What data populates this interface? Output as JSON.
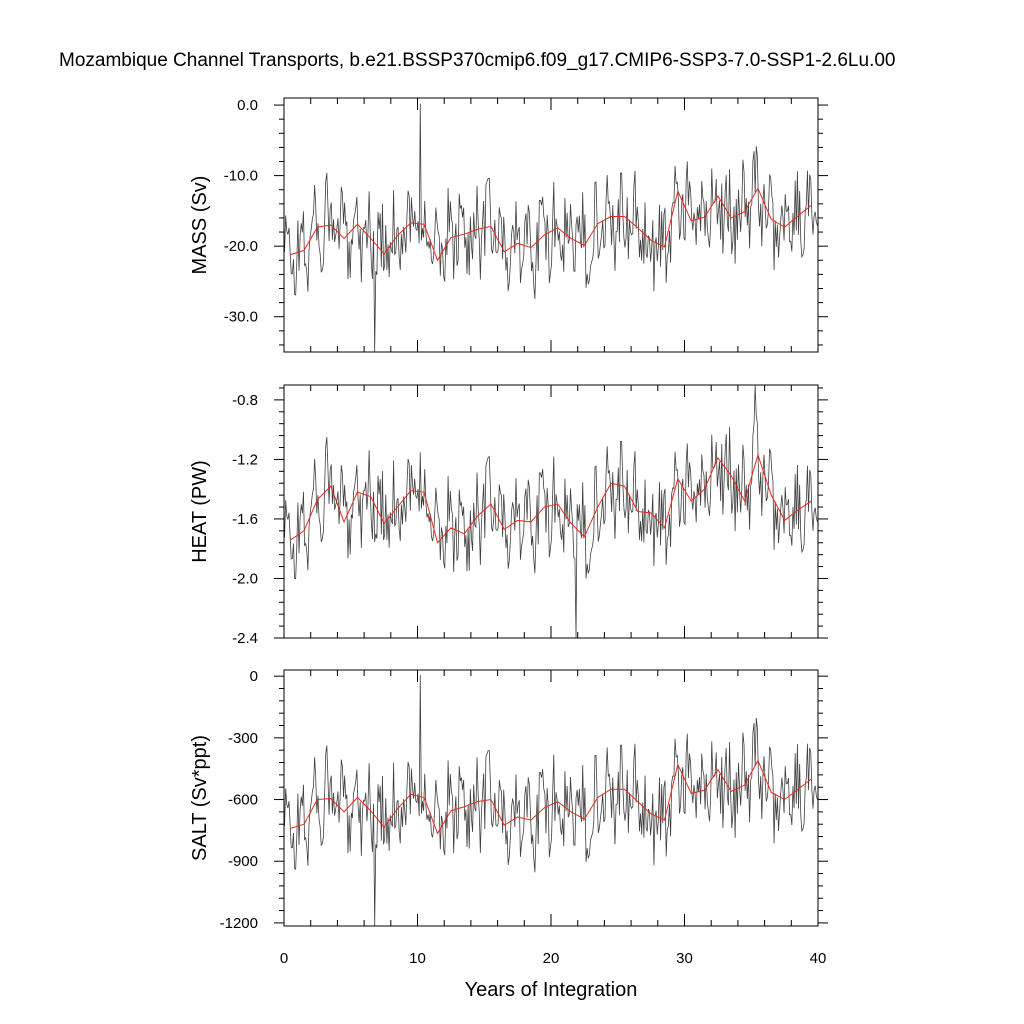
{
  "chart_data": {
    "type": "line",
    "title": "Mozambique Channel Transports, b.e21.BSSP370cmip6.f09_g17.CMIP6-SSP3-7.0-SSP1-2.6Lu.00",
    "xlabel": "Years of Integration",
    "xlim": [
      0,
      40
    ],
    "x_ticks": [
      "0",
      "10",
      "20",
      "30",
      "40"
    ],
    "series_colors": {
      "monthly": "#404040",
      "annual": "#e8281e"
    },
    "panels": [
      {
        "name": "mass",
        "ylabel": "MASS (Sv)",
        "ylim": [
          -35,
          1
        ],
        "y_ticks": [
          {
            "value": 0,
            "label": "0.0"
          },
          {
            "value": -10,
            "label": "-10.0"
          },
          {
            "value": -20,
            "label": "-20.0"
          },
          {
            "value": -30,
            "label": "-30.0"
          }
        ],
        "noise_amp": 4.6,
        "spike_up": {
          "x": 10.2,
          "value": 0.2
        },
        "spike_down": {
          "x": 6.8,
          "value": -35.0
        },
        "annual_x": [
          0.5,
          1.5,
          2.5,
          3.5,
          4.5,
          5.5,
          6.5,
          7.5,
          8.5,
          9.5,
          10.5,
          11.5,
          12.5,
          13.5,
          14.5,
          15.5,
          16.5,
          17.5,
          18.5,
          19.5,
          20.5,
          21.5,
          22.5,
          23.5,
          24.5,
          25.5,
          26.5,
          27.5,
          28.5,
          29.5,
          30.5,
          31.5,
          32.5,
          33.5,
          34.5,
          35.5,
          36.5,
          37.5,
          38.5,
          39.5
        ],
        "annual_values": [
          -21.2,
          -20.6,
          -17.3,
          -17.0,
          -18.9,
          -16.9,
          -18.9,
          -21.1,
          -18.5,
          -16.7,
          -16.9,
          -22.0,
          -18.8,
          -18.3,
          -17.6,
          -17.2,
          -20.8,
          -19.6,
          -20.2,
          -18.4,
          -17.4,
          -18.9,
          -19.9,
          -16.8,
          -15.8,
          -15.8,
          -17.4,
          -19.2,
          -20.1,
          -12.2,
          -16.4,
          -15.9,
          -12.9,
          -16.0,
          -15.1,
          -11.8,
          -16.2,
          -17.3,
          -15.7,
          -14.2
        ]
      },
      {
        "name": "heat",
        "ylabel": "HEAT (PW)",
        "ylim": [
          -2.4,
          -0.7
        ],
        "y_ticks": [
          {
            "value": -0.8,
            "label": "-0.8"
          },
          {
            "value": -1.2,
            "label": "-1.2"
          },
          {
            "value": -1.6,
            "label": "-1.6"
          },
          {
            "value": -2.0,
            "label": "-2.0"
          },
          {
            "value": -2.4,
            "label": "-2.4"
          }
        ],
        "noise_amp": 0.22,
        "spike_up": {
          "x": 35.3,
          "value": -0.68
        },
        "spike_down": {
          "x": 21.9,
          "value": -2.4
        },
        "annual_x": [
          0.5,
          1.5,
          2.5,
          3.5,
          4.5,
          5.5,
          6.5,
          7.5,
          8.5,
          9.5,
          10.5,
          11.5,
          12.5,
          13.5,
          14.5,
          15.5,
          16.5,
          17.5,
          18.5,
          19.5,
          20.5,
          21.5,
          22.5,
          23.5,
          24.5,
          25.5,
          26.5,
          27.5,
          28.5,
          29.5,
          30.5,
          31.5,
          32.5,
          33.5,
          34.5,
          35.5,
          36.5,
          37.5,
          38.5,
          39.5
        ],
        "annual_values": [
          -1.74,
          -1.68,
          -1.47,
          -1.38,
          -1.62,
          -1.42,
          -1.45,
          -1.63,
          -1.52,
          -1.41,
          -1.42,
          -1.76,
          -1.66,
          -1.7,
          -1.58,
          -1.5,
          -1.67,
          -1.61,
          -1.62,
          -1.52,
          -1.5,
          -1.63,
          -1.72,
          -1.52,
          -1.36,
          -1.38,
          -1.55,
          -1.56,
          -1.66,
          -1.33,
          -1.48,
          -1.4,
          -1.19,
          -1.31,
          -1.48,
          -1.17,
          -1.44,
          -1.61,
          -1.54,
          -1.48
        ]
      },
      {
        "name": "salt",
        "ylabel": "SALT (Sv*ppt)",
        "ylim": [
          -1215,
          30
        ],
        "y_ticks": [
          {
            "value": 0,
            "label": "0"
          },
          {
            "value": -300,
            "label": "-300"
          },
          {
            "value": -600,
            "label": "-600"
          },
          {
            "value": -900,
            "label": "-900"
          },
          {
            "value": -1200,
            "label": "-1200"
          }
        ],
        "noise_amp": 160,
        "spike_up": {
          "x": 10.2,
          "value": 5
        },
        "spike_down": {
          "x": 6.8,
          "value": -1215
        },
        "annual_x": [
          0.5,
          1.5,
          2.5,
          3.5,
          4.5,
          5.5,
          6.5,
          7.5,
          8.5,
          9.5,
          10.5,
          11.5,
          12.5,
          13.5,
          14.5,
          15.5,
          16.5,
          17.5,
          18.5,
          19.5,
          20.5,
          21.5,
          22.5,
          23.5,
          24.5,
          25.5,
          26.5,
          27.5,
          28.5,
          29.5,
          30.5,
          31.5,
          32.5,
          33.5,
          34.5,
          35.5,
          36.5,
          37.5,
          38.5,
          39.5
        ],
        "annual_values": [
          -740,
          -720,
          -600,
          -595,
          -660,
          -590,
          -655,
          -735,
          -645,
          -575,
          -590,
          -765,
          -655,
          -635,
          -610,
          -600,
          -725,
          -685,
          -700,
          -640,
          -610,
          -660,
          -695,
          -590,
          -550,
          -550,
          -610,
          -670,
          -700,
          -430,
          -570,
          -555,
          -455,
          -560,
          -530,
          -410,
          -565,
          -600,
          -550,
          -500
        ]
      }
    ]
  }
}
